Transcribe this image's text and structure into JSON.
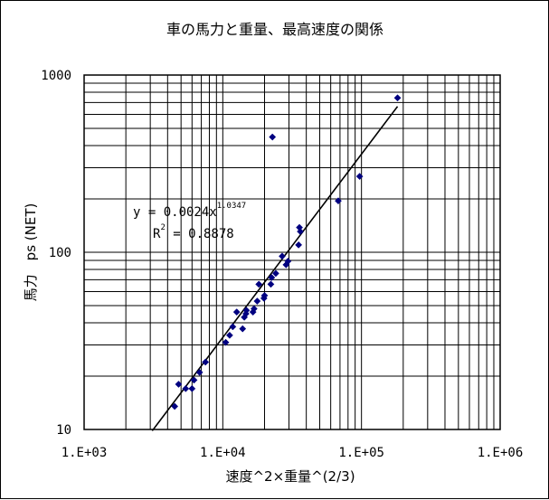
{
  "chart_data": {
    "type": "scatter",
    "title": "車の馬力と重量、最高速度の関係",
    "xlabel": "速度^2×重量^(2/3)",
    "ylabel": "馬力　ps (NET)",
    "x_scale": "log",
    "y_scale": "log",
    "xlim": [
      1000,
      1000000
    ],
    "ylim": [
      10,
      1000
    ],
    "x_tick_labels": [
      "1.E+03",
      "1.E+04",
      "1.E+05",
      "1.E+06"
    ],
    "y_tick_labels": [
      "10",
      "100",
      "1000"
    ],
    "grid": true,
    "legend": "none",
    "marker_color": "#000080",
    "trendline_color": "#000000",
    "series": [
      {
        "points": [
          {
            "x": 4500,
            "y": 13.5
          },
          {
            "x": 4800,
            "y": 18
          },
          {
            "x": 5400,
            "y": 17
          },
          {
            "x": 6000,
            "y": 17
          },
          {
            "x": 6200,
            "y": 19
          },
          {
            "x": 6800,
            "y": 21
          },
          {
            "x": 7500,
            "y": 24
          },
          {
            "x": 10500,
            "y": 31
          },
          {
            "x": 11200,
            "y": 34
          },
          {
            "x": 11800,
            "y": 38
          },
          {
            "x": 12600,
            "y": 46
          },
          {
            "x": 13900,
            "y": 37
          },
          {
            "x": 14300,
            "y": 43
          },
          {
            "x": 14700,
            "y": 45
          },
          {
            "x": 14800,
            "y": 47
          },
          {
            "x": 16500,
            "y": 46
          },
          {
            "x": 16800,
            "y": 48
          },
          {
            "x": 17700,
            "y": 53
          },
          {
            "x": 18200,
            "y": 66
          },
          {
            "x": 19800,
            "y": 55
          },
          {
            "x": 20000,
            "y": 57
          },
          {
            "x": 22200,
            "y": 66
          },
          {
            "x": 22500,
            "y": 72
          },
          {
            "x": 22800,
            "y": 447
          },
          {
            "x": 24100,
            "y": 76
          },
          {
            "x": 26800,
            "y": 95
          },
          {
            "x": 28600,
            "y": 85
          },
          {
            "x": 29500,
            "y": 89
          },
          {
            "x": 35200,
            "y": 110
          },
          {
            "x": 35700,
            "y": 138
          },
          {
            "x": 36200,
            "y": 131
          },
          {
            "x": 68000,
            "y": 195
          },
          {
            "x": 97000,
            "y": 268
          },
          {
            "x": 182000,
            "y": 743
          }
        ]
      }
    ],
    "trendline": {
      "coefficient": 0.0024,
      "exponent": 1.0347,
      "x_start": 3100,
      "x_end": 182000,
      "equation_text": "y = 0.0024x",
      "equation_exponent": "1.0347",
      "r2_text": "R",
      "r2_sup": "2",
      "r2_value_text": " = 0.8878"
    }
  }
}
